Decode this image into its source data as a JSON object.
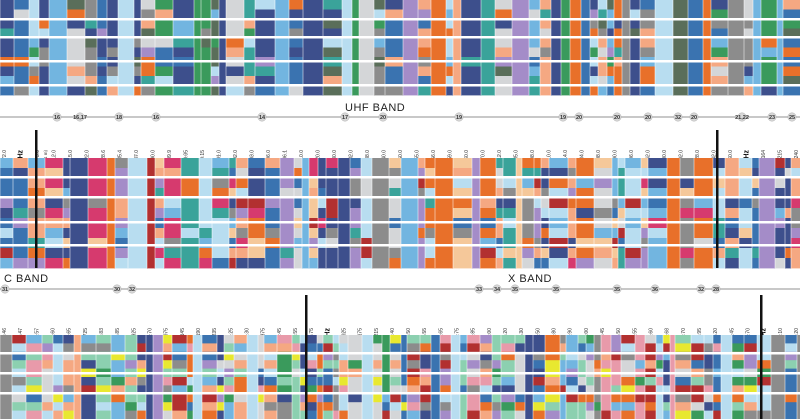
{
  "colors": {
    "navy": "#3d4f8c",
    "blue": "#3a73b0",
    "sky": "#72b5e0",
    "pale": "#b8ddf0",
    "grey": "#8c8c8c",
    "lightgrey": "#d4d6d8",
    "green": "#3a9a5c",
    "teal": "#3aa39a",
    "orange": "#e8702a",
    "peach": "#f5a882",
    "red": "#b23030",
    "pink": "#d63a6e",
    "lilac": "#a48cc8",
    "mint": "#8cd0b0",
    "dkgreen": "#5a6e5a",
    "yellow": "#e8e830",
    "tan": "#f5c89a",
    "rose": "#e89aaa",
    "white": "#ffffff"
  },
  "uhf": {
    "title": "UHF BAND",
    "markers": [
      "16",
      "16,17",
      "18",
      "16",
      "14",
      "17",
      "20",
      "19",
      "19",
      "20",
      "20",
      "20",
      "32",
      "20",
      "21,22",
      "23",
      "25"
    ],
    "freqs": [
      "272.0",
      "300 MHz",
      "273.0",
      "312.0",
      "315.0",
      "322.0",
      "328.6",
      "335.4",
      "387.0",
      "390.0",
      "399.9",
      "400.05",
      "400.15",
      "401.0",
      "402.0",
      "403.0",
      "406.0",
      "406.1",
      "410.0",
      "420.0",
      "430.0",
      "432.0",
      "438.0",
      "440.0",
      "450.0",
      "455.0",
      "456.0",
      "459.0",
      "460.0",
      "470.0",
      "512.0",
      "585.0",
      "608.0",
      "610.0",
      "614.0",
      "684.0",
      "698.0",
      "790.0",
      "806.0",
      "862.0",
      "890.0",
      "902.0",
      "928.0",
      "942.0",
      "960.0",
      "1.0 GHz",
      "1.164",
      "1.215",
      "1.240"
    ],
    "sub": "(1 m)"
  },
  "lower": {
    "c_title": "C BAND",
    "x_title": "X BAND",
    "markers": [
      "31",
      "30",
      "32",
      "33",
      "34",
      "35",
      "35",
      "35",
      "36",
      "32",
      "28"
    ],
    "freqs": [
      "5.46",
      "5.47",
      "5.57",
      "5.60",
      "5.65",
      "5.725",
      "5.83",
      "5.85",
      "5.925",
      "6.70",
      "7.075",
      "7.145",
      "7.190",
      "7.235",
      "7.25",
      "7.30",
      "7.375",
      "7.45",
      "7.55",
      "7.75",
      "8.0 GHz",
      "8.025",
      "8.175",
      "8.215",
      "8.40",
      "8.50",
      "8.55",
      "8.65",
      "8.75",
      "8.85",
      "9.00",
      "9.20",
      "9.30",
      "9.50",
      "9.80",
      "9.90",
      "10.00",
      "10.45",
      "10.50",
      "10.55",
      "10.60",
      "10.68",
      "10.70",
      "10.95",
      "11.20",
      "11.45",
      "11.70",
      "12.0 GHz",
      "12.10",
      "12.20"
    ]
  }
}
